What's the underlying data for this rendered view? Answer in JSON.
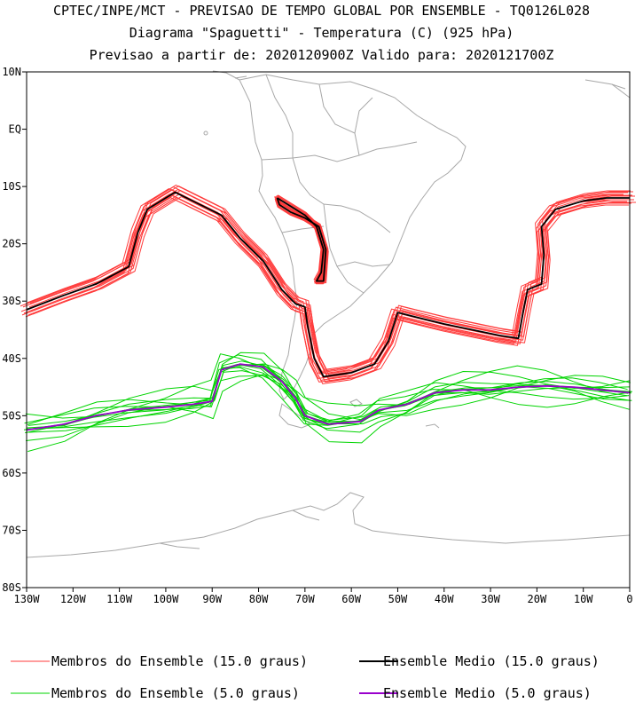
{
  "header": {
    "line1": "CPTEC/INPE/MCT - PREVISAO DE TEMPO GLOBAL POR ENSEMBLE - TQ0126L028",
    "line2": "Diagrama \"Spaguetti\" - Temperatura (C) (925 hPa)",
    "line3": "Previsao a partir de: 2020120900Z  Valido para: 2020121700Z"
  },
  "axes": {
    "lat_labels": [
      "10N",
      "EQ",
      "10S",
      "20S",
      "30S",
      "40S",
      "50S",
      "60S",
      "70S",
      "80S"
    ],
    "lon_labels": [
      "130W",
      "120W",
      "110W",
      "100W",
      "90W",
      "80W",
      "70W",
      "60W",
      "50W",
      "40W",
      "30W",
      "20W",
      "10W",
      "0"
    ],
    "lat_range": [
      10,
      -80
    ],
    "lon_range": [
      -130,
      0
    ]
  },
  "legend": {
    "items": [
      {
        "label": "Membros do Ensemble (15.0 graus)",
        "color": "#ff3b3b"
      },
      {
        "label": "Ensemble Medio (15.0 graus)",
        "color": "#000000"
      },
      {
        "label": "Membros do Ensemble (5.0 graus)",
        "color": "#00d400"
      },
      {
        "label": "Ensemble Medio (5.0 graus)",
        "color": "#9900cc"
      }
    ]
  },
  "colors": {
    "coast": "#a8a8a8",
    "member15": "#ff3b3b",
    "mean15": "#000000",
    "member5": "#00d400",
    "mean5": "#9900cc"
  }
}
